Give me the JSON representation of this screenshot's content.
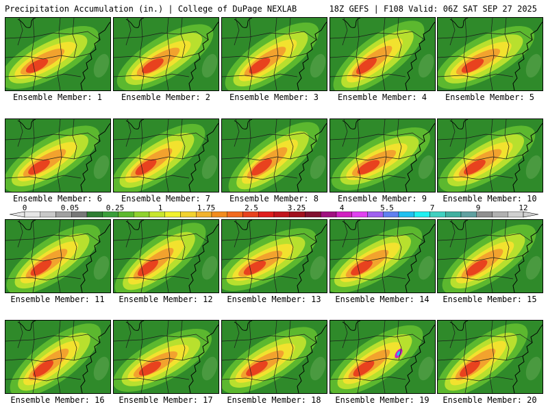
{
  "header": {
    "title": "Precipitation Accumulation (in.) | College of DuPage NEXLAB",
    "run_info": "18Z GEFS | F108 Valid: 06Z SAT SEP 27 2025"
  },
  "colorbar": {
    "tick_labels": [
      "0",
      "0.05",
      "0.25",
      "1",
      "1.75",
      "2.5",
      "3.25",
      "4",
      "5.5",
      "7",
      "9",
      "12"
    ],
    "colors": [
      "#e6e6e6",
      "#c8c8c8",
      "#a0a0a0",
      "#787878",
      "#2e7d32",
      "#3a9e3a",
      "#5cb82f",
      "#8fd12e",
      "#c8e62e",
      "#f2f22e",
      "#f2d22e",
      "#f2b22e",
      "#f28c1e",
      "#f26a1e",
      "#e8421e",
      "#e01e1e",
      "#c0141e",
      "#a0101e",
      "#801030",
      "#a01080",
      "#d020c0",
      "#e040f0",
      "#a060f0",
      "#6080f0",
      "#20c0f0",
      "#20f0f0",
      "#40d0c0",
      "#40b0a0",
      "#60a0a0",
      "#909090",
      "#b0b0b0",
      "#d0d0d0"
    ]
  },
  "members": [
    {
      "label": "Ensemble Member: 1"
    },
    {
      "label": "Ensemble Member: 2"
    },
    {
      "label": "Ensemble Member: 3"
    },
    {
      "label": "Ensemble Member: 4"
    },
    {
      "label": "Ensemble Member: 5"
    },
    {
      "label": "Ensemble Member: 6"
    },
    {
      "label": "Ensemble Member: 7"
    },
    {
      "label": "Ensemble Member: 8"
    },
    {
      "label": "Ensemble Member: 9"
    },
    {
      "label": "Ensemble Member: 10"
    },
    {
      "label": "Ensemble Member: 11"
    },
    {
      "label": "Ensemble Member: 12"
    },
    {
      "label": "Ensemble Member: 13"
    },
    {
      "label": "Ensemble Member: 14"
    },
    {
      "label": "Ensemble Member: 15"
    },
    {
      "label": "Ensemble Member: 16"
    },
    {
      "label": "Ensemble Member: 17"
    },
    {
      "label": "Ensemble Member: 18"
    },
    {
      "label": "Ensemble Member: 19"
    },
    {
      "label": "Ensemble Member: 20"
    }
  ]
}
